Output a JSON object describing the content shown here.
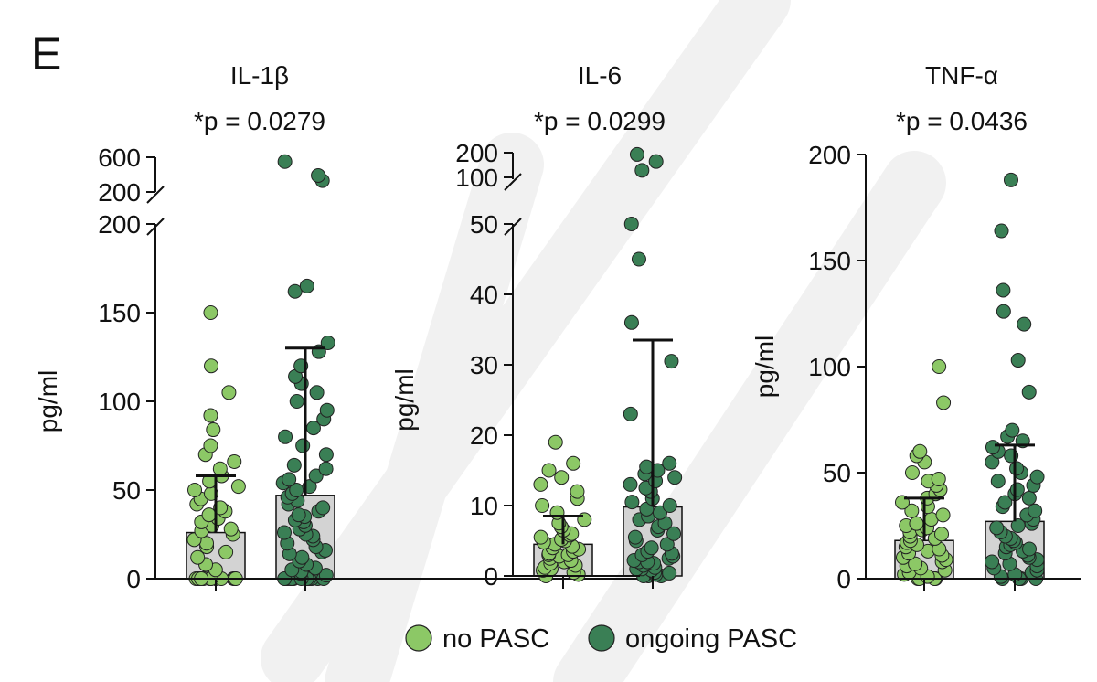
{
  "panel_label": "E",
  "colors": {
    "no_pasc": "#8cc866",
    "ongoing_pasc": "#3a7f55",
    "bar": "#d3d3d3",
    "axis": "#111111",
    "watermark": "#f1f1f1"
  },
  "legend": [
    {
      "label": "no PASC",
      "color": "#8cc866"
    },
    {
      "label": "ongoing PASC",
      "color": "#3a7f55"
    }
  ],
  "chart_data": [
    {
      "type": "bar",
      "title": "IL-1β",
      "subtitle": "*p = 0.0279",
      "ylabel": "pg/ml",
      "categories": [
        "no PASC",
        "ongoing PASC"
      ],
      "axis_break": true,
      "lower_segment": {
        "ylim": [
          0,
          200
        ],
        "ticks": [
          "0",
          "50",
          "100",
          "150",
          "200"
        ],
        "tick_values": [
          0,
          50,
          100,
          150,
          200
        ]
      },
      "upper_segment": {
        "ylim": [
          200,
          600
        ],
        "ticks": [
          "200",
          "600"
        ],
        "tick_values": [
          200,
          600
        ]
      },
      "series": [
        {
          "mean": 26,
          "sd_top": 58,
          "points": [
            0,
            0,
            0,
            0,
            0,
            0,
            0,
            0,
            0,
            0,
            0,
            0,
            0,
            0,
            5,
            8,
            12,
            15,
            18,
            20,
            22,
            25,
            27,
            28,
            30,
            32,
            34,
            36,
            38,
            40,
            42,
            45,
            48,
            50,
            52,
            55,
            58,
            62,
            66,
            70,
            75,
            84,
            92,
            105,
            120,
            150
          ]
        },
        {
          "mean": 47,
          "sd_top": 130,
          "points": [
            0,
            0,
            0,
            0,
            0,
            0,
            0,
            0,
            0,
            0,
            0,
            0,
            0,
            2,
            3,
            4,
            5,
            6,
            8,
            10,
            12,
            14,
            15,
            16,
            18,
            20,
            22,
            24,
            25,
            26,
            28,
            30,
            32,
            33,
            35,
            36,
            38,
            40,
            42,
            44,
            46,
            48,
            50,
            52,
            54,
            56,
            58,
            62,
            64,
            70,
            75,
            80,
            85,
            90,
            95,
            100,
            105,
            110,
            114,
            120,
            128,
            133,
            162,
            165,
            330,
            390,
            550
          ]
        }
      ]
    },
    {
      "type": "bar",
      "title": "IL-6",
      "subtitle": "*p = 0.0299",
      "ylabel": "pg/ml",
      "categories": [
        "no PASC",
        "ongoing PASC"
      ],
      "axis_break": true,
      "lower_segment": {
        "ylim": [
          0,
          50
        ],
        "ticks": [
          "0",
          "10",
          "20",
          "30",
          "40",
          "50"
        ],
        "tick_values": [
          0,
          10,
          20,
          30,
          40,
          50
        ]
      },
      "upper_segment": {
        "ylim": [
          50,
          200
        ],
        "ticks": [
          "100",
          "200"
        ],
        "tick_values": [
          100,
          200
        ]
      },
      "series": [
        {
          "mean": 4.5,
          "sd_top": 8.5,
          "points": [
            0,
            0.2,
            0.5,
            0.8,
            1,
            1.2,
            1.5,
            1.8,
            2,
            2.2,
            2.5,
            2.8,
            3,
            3,
            3.2,
            3.5,
            3.8,
            4,
            4.2,
            4.5,
            4.8,
            5,
            5.2,
            5.5,
            5.8,
            6,
            6.5,
            7,
            7.5,
            8,
            9,
            10,
            11,
            12,
            13,
            14,
            15,
            16,
            19
          ]
        },
        {
          "mean": 9.8,
          "sd_top": 33.5,
          "points": [
            0,
            0,
            0,
            0.2,
            0.4,
            0.5,
            0.8,
            1,
            1,
            1.2,
            1.5,
            1.8,
            2,
            2,
            2.2,
            2.5,
            2.8,
            3,
            3.2,
            3.5,
            4,
            4.5,
            5,
            5.5,
            6,
            6.5,
            7,
            7.5,
            8,
            8.5,
            9,
            9.5,
            10,
            10.5,
            11,
            12,
            12.5,
            13,
            13.5,
            14,
            14.5,
            15,
            15.5,
            16,
            23,
            30.5,
            36,
            45,
            50,
            100,
            150,
            190
          ]
        }
      ]
    },
    {
      "type": "bar",
      "title": "TNF-α",
      "subtitle": "*p = 0.0436",
      "ylabel": "pg/ml",
      "categories": [
        "no PASC",
        "ongoing PASC"
      ],
      "axis_break": false,
      "lower_segment": {
        "ylim": [
          0,
          200
        ],
        "ticks": [
          "0",
          "50",
          "100",
          "150",
          "200"
        ],
        "tick_values": [
          0,
          50,
          100,
          150,
          200
        ]
      },
      "series": [
        {
          "mean": 18,
          "sd_top": 38,
          "points": [
            0,
            0,
            0,
            0,
            1,
            2,
            3,
            4,
            5,
            6,
            7,
            8,
            9,
            10,
            11,
            12,
            13,
            14,
            15,
            16,
            17,
            18,
            19,
            20,
            21,
            22,
            23,
            24,
            25,
            26,
            28,
            30,
            32,
            34,
            36,
            38,
            40,
            42,
            44,
            46,
            47,
            50,
            55,
            58,
            60,
            83,
            100
          ]
        },
        {
          "mean": 27,
          "sd_top": 63,
          "points": [
            0,
            0,
            0,
            0,
            1,
            2,
            3,
            4,
            5,
            6,
            7,
            8,
            9,
            10,
            11,
            12,
            13,
            14,
            15,
            16,
            17,
            18,
            19,
            20,
            22,
            24,
            25,
            26,
            28,
            30,
            32,
            34,
            36,
            38,
            40,
            42,
            44,
            46,
            48,
            50,
            52,
            55,
            58,
            60,
            62,
            65,
            67,
            70,
            88,
            103,
            120,
            126,
            136,
            164,
            188
          ]
        }
      ]
    }
  ]
}
